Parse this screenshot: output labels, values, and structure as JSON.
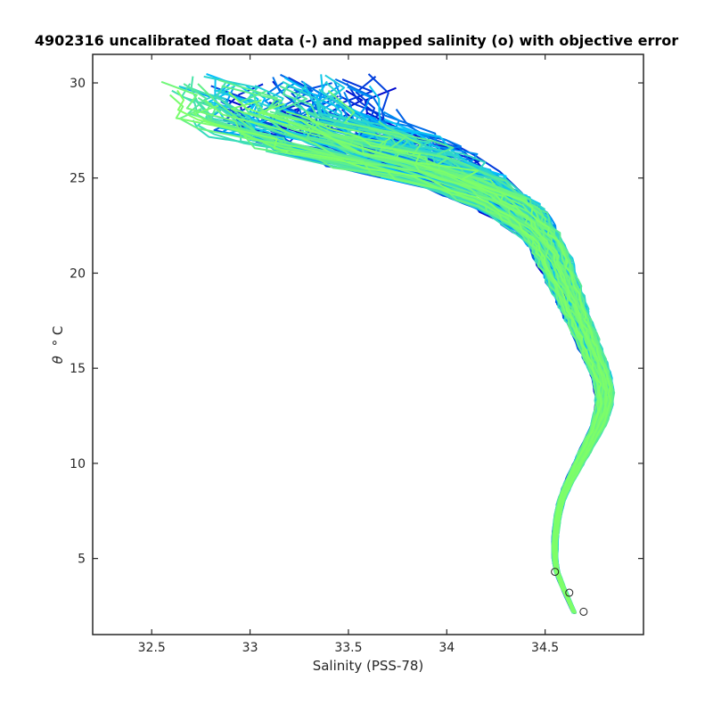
{
  "chart_data": {
    "type": "line",
    "title": "4902316 uncalibrated float data (-) and mapped salinity (o) with objective error",
    "xlabel": "Salinity (PSS-78)",
    "ylabel_symbol": "θ",
    "ylabel_unit": "° C",
    "xlim": [
      32.2,
      35.0
    ],
    "ylim": [
      1.0,
      31.5
    ],
    "xticks": [
      32.5,
      33,
      33.5,
      34,
      34.5
    ],
    "xtick_labels": [
      "32.5",
      "33",
      "33.5",
      "34",
      "34.5"
    ],
    "yticks": [
      5,
      10,
      15,
      20,
      25,
      30
    ],
    "ytick_labels": [
      "5",
      "10",
      "15",
      "20",
      "25",
      "30"
    ],
    "grid": false,
    "colormap_from": "#0000cc",
    "colormap_mid": "#00bfff",
    "colormap_to": "#80ff66",
    "profile_count": 150,
    "mean_profile": [
      {
        "theta": 2.1,
        "salinity": 34.65
      },
      {
        "theta": 2.8,
        "salinity": 34.62
      },
      {
        "theta": 3.5,
        "salinity": 34.59
      },
      {
        "theta": 4.3,
        "salinity": 34.56
      },
      {
        "theta": 5.0,
        "salinity": 34.55
      },
      {
        "theta": 6.0,
        "salinity": 34.55
      },
      {
        "theta": 7.0,
        "salinity": 34.56
      },
      {
        "theta": 8.0,
        "salinity": 34.58
      },
      {
        "theta": 9.0,
        "salinity": 34.62
      },
      {
        "theta": 10.0,
        "salinity": 34.67
      },
      {
        "theta": 11.0,
        "salinity": 34.72
      },
      {
        "theta": 12.0,
        "salinity": 34.77
      },
      {
        "theta": 13.0,
        "salinity": 34.8
      },
      {
        "theta": 14.0,
        "salinity": 34.8
      },
      {
        "theta": 15.0,
        "salinity": 34.77
      },
      {
        "theta": 16.0,
        "salinity": 34.73
      },
      {
        "theta": 17.0,
        "salinity": 34.69
      },
      {
        "theta": 18.0,
        "salinity": 34.65
      },
      {
        "theta": 19.0,
        "salinity": 34.61
      },
      {
        "theta": 20.0,
        "salinity": 34.57
      },
      {
        "theta": 21.0,
        "salinity": 34.53
      },
      {
        "theta": 22.0,
        "salinity": 34.47
      },
      {
        "theta": 23.0,
        "salinity": 34.37
      },
      {
        "theta": 24.0,
        "salinity": 34.22
      },
      {
        "theta": 25.0,
        "salinity": 34.02
      },
      {
        "theta": 26.0,
        "salinity": 33.8
      },
      {
        "theta": 27.0,
        "salinity": 33.6
      },
      {
        "theta": 28.0,
        "salinity": 33.45
      },
      {
        "theta": 29.0,
        "salinity": 33.45
      }
    ],
    "salinity_spread_by_theta": [
      {
        "theta": 2,
        "spread": 0.01
      },
      {
        "theta": 8,
        "spread": 0.02
      },
      {
        "theta": 13,
        "spread": 0.05
      },
      {
        "theta": 18,
        "spread": 0.08
      },
      {
        "theta": 22,
        "spread": 0.12
      },
      {
        "theta": 25,
        "spread": 0.3
      },
      {
        "theta": 27,
        "spread": 0.55
      },
      {
        "theta": 29,
        "spread": 0.45
      }
    ],
    "surface_extremes": {
      "min_salinity": 32.3,
      "max_salinity": 34.3,
      "max_theta": 30.5
    }
  }
}
